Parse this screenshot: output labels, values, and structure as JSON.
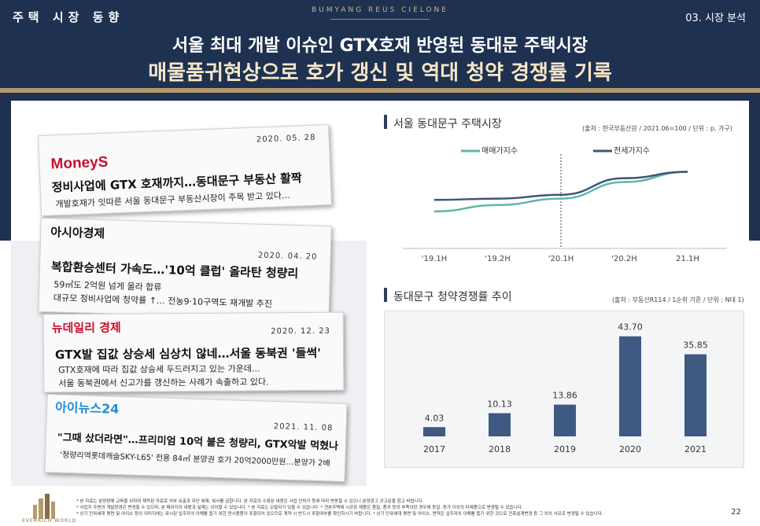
{
  "header": {
    "section": "주택 시장 동향",
    "brand": "BUMYANG REUS CIELONE",
    "page_label": "03. 시장 분석",
    "title_line1": "서울 최대 개발 이슈인 GTX호재 반영된 동대문 주택시장",
    "title_line2": "매물품귀현상으로 호가 갱신 및 역대 청약 경쟁률 기록"
  },
  "clippings": [
    {
      "logo": "MoneyS",
      "date": "2020. 05. 28",
      "headline": "정비사업에 GTX 호재까지…동대문구 부동산 활짝",
      "sub1": "개발호재가 잇따른 서울 동대문구 부동산시장이 주목 받고 있다…",
      "sub2": ""
    },
    {
      "logo": "아시아경제",
      "date": "2020. 04. 20",
      "headline": "복합환승센터 가속도…'10억 클럽' 올라탄 청량리",
      "sub1": "59㎡도 2억원 넘게 올라 합류",
      "sub2": "대규모 정비사업에 청약률 ↑… 전농9·10구역도 재개발 추진"
    },
    {
      "logo": "뉴데일리 경제",
      "date": "2020. 12. 23",
      "headline": "GTX발 집값 상승세 심상치 않네…서울 동북권 '들썩'",
      "sub1": "GTX호재에 따라 집값 상승세 두드러지고 있는 가운데…",
      "sub2": "서울 동북권에서 신고가를 갱신하는 사례가 속출하고 있다."
    },
    {
      "logo": "아이뉴스24",
      "date": "2021. 11. 08",
      "headline": "\"그때 샀더라면\"…프리미엄 10억 붙은 청량리, GTX악발 먹혔나",
      "sub1": "'청량리역롯데캐슬SKY-L65' 전용 84㎡ 분양권 호가 20억2000만원…분양가 2배",
      "sub2": ""
    }
  ],
  "line_section": {
    "title": "서울 동대문구 주택시장",
    "source": "(출처 : 한국부동산원 / 2021.06=100 / 단위 : p, 가구)"
  },
  "bar_section": {
    "title": "동대문구 청약경쟁률 추이",
    "source": "(출처 : 부동산R114 / 1순위 기준 / 단위 : N대 1)"
  },
  "chart_data": [
    {
      "type": "line",
      "x": [
        "'19.1H",
        "'19.2H",
        "'20.1H",
        "'20.2H",
        "21.1H"
      ],
      "series": [
        {
          "name": "매매가지수",
          "color": "#5cb8a8",
          "values": [
            84.5,
            87.0,
            89.5,
            96.0,
            100.0
          ]
        },
        {
          "name": "전세가지수",
          "color": "#3e5677",
          "values": [
            89.0,
            89.5,
            91.0,
            97.5,
            100.0
          ]
        }
      ],
      "ylim": [
        70,
        110
      ],
      "grid": false
    },
    {
      "type": "bar",
      "categories": [
        "2017",
        "2018",
        "2019",
        "2020",
        "2021"
      ],
      "values": [
        4.03,
        10.13,
        13.86,
        43.7,
        35.85
      ],
      "labels": [
        "4.03",
        "10.13",
        "13.86",
        "43.70",
        "35.85"
      ],
      "color": "#3e5a82",
      "ylim": [
        0,
        50
      ]
    }
  ],
  "footer": {
    "notes": [
      "* 본 자료는 분양판매 교육을 위하여 제작된 자료로 외부 유출과 무단 복제, 복사를 금합니다. 본 자료의 수록된 내용은 사업 인허가 등에 따라 변동될 수 있으니 분양광고 공고문을 참고 바랍니다.",
      "* 사업지 주변의 개발환경은 변경될 수 있으며, 본 페이지의 내용과 실제는 상이할 수 있습니다. * 본 자료는 오탈자가 있을 수 있습니다. * 견본주택에 시공된 제품은 품질, 품귀 등의 부족이란 경우에 동일, 동가 이상의 타제품으로 변경될 수 있습니다.",
      "* 상기 단위세대 평면 및 아이소 등의 이미지에는 표시된 입주자의 이해를 돕기 위한 연시용품이 포함되어 있으므로 계약 시 반드시 포함여부를 확인하시기 바랍니다. * 상기 단위세대 평면 및 아이소, 면적은 입주자의 이해를 돕기 위한 것으로 건축설계변경 등 그 외의 사유로 변경될 수 있습니다."
    ],
    "page": "22",
    "logo": "EVERRICH WORLD"
  }
}
